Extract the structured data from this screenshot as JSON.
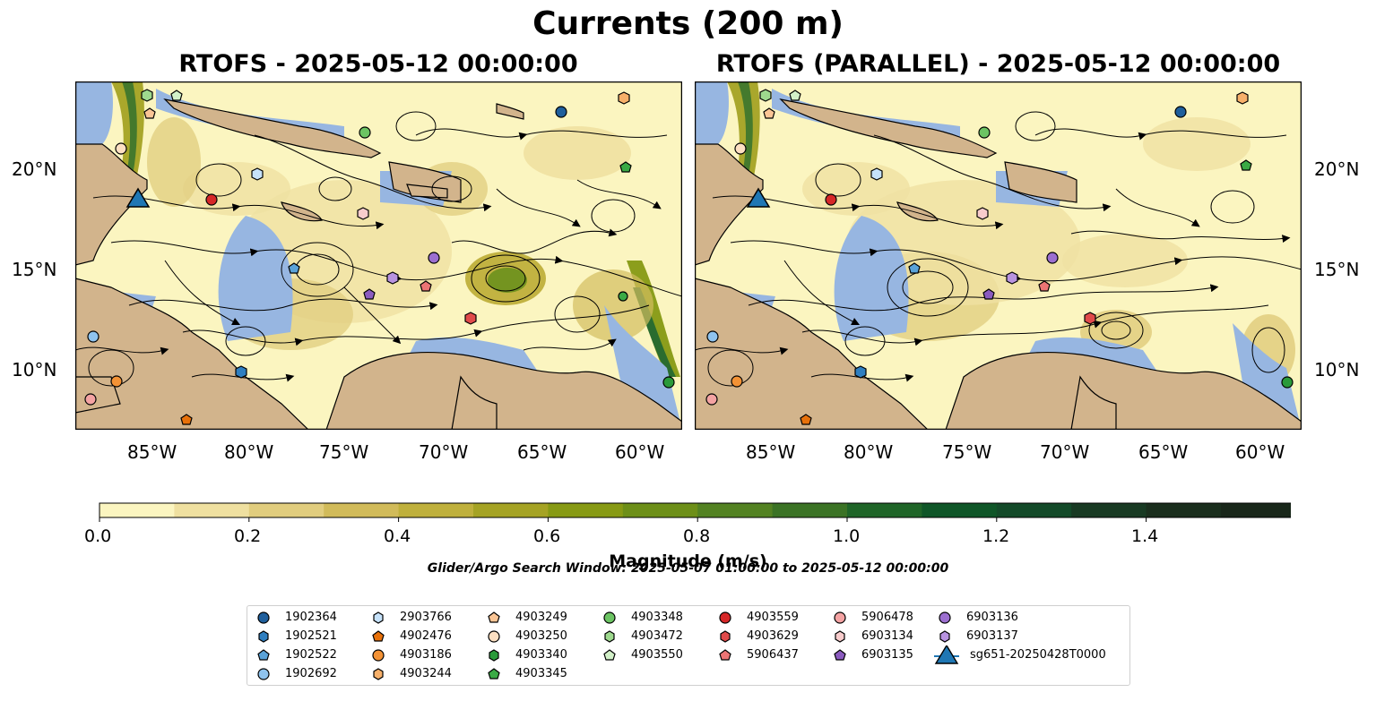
{
  "figure": {
    "suptitle": "Currents (200 m)",
    "left_title": "RTOFS - 2025-05-12 00:00:00",
    "right_title": "RTOFS (PARALLEL) - 2025-05-12 00:00:00",
    "lon_labels": [
      "85°W",
      "80°W",
      "75°W",
      "70°W",
      "65°W",
      "60°W"
    ],
    "lat_labels": [
      "20°N",
      "15°N",
      "10°N"
    ],
    "colorbar_label": "Magnitude (m/s)",
    "colorbar_ticks": [
      "0.0",
      "0.2",
      "0.4",
      "0.6",
      "0.8",
      "1.0",
      "1.2",
      "1.4"
    ],
    "colorbar_colors": [
      "#fbf5c0",
      "#efe0a0",
      "#e1cd7e",
      "#d1bb5a",
      "#bfb03c",
      "#a5a324",
      "#879a14",
      "#6d8f18",
      "#538222",
      "#3b7325",
      "#1f6528",
      "#0f5628",
      "#134a29",
      "#183a23",
      "#1a2e1d",
      "#19271a"
    ],
    "search_window": "Glider/Argo Search Window: 2025-05-07 01:00:00 to 2025-05-12 00:00:00",
    "colors": {
      "land": "#d2b48c",
      "shallow": "#97b6e1",
      "coast": "#000000"
    }
  },
  "legend": [
    {
      "label": "1902364",
      "marker": "circle",
      "color": "#1f5f9c"
    },
    {
      "label": "1902521",
      "marker": "hexagon",
      "color": "#2f7fc0"
    },
    {
      "label": "1902522",
      "marker": "pentagon",
      "color": "#5aa2d8"
    },
    {
      "label": "1902692",
      "marker": "circle",
      "color": "#8fc3ee"
    },
    {
      "label": "2903766",
      "marker": "hexagon",
      "color": "#c6e2fa"
    },
    {
      "label": "4902476",
      "marker": "pentagon",
      "color": "#e8710a"
    },
    {
      "label": "4903186",
      "marker": "circle",
      "color": "#f39235"
    },
    {
      "label": "4903244",
      "marker": "hexagon",
      "color": "#f7b06a"
    },
    {
      "label": "4903249",
      "marker": "pentagon",
      "color": "#fac595"
    },
    {
      "label": "4903250",
      "marker": "circle",
      "color": "#fde0c2"
    },
    {
      "label": "4903340",
      "marker": "hexagon",
      "color": "#2a9a3a"
    },
    {
      "label": "4903345",
      "marker": "pentagon",
      "color": "#3aaa45"
    },
    {
      "label": "4903348",
      "marker": "circle",
      "color": "#6cc463"
    },
    {
      "label": "4903472",
      "marker": "hexagon",
      "color": "#9ed98e"
    },
    {
      "label": "4903550",
      "marker": "pentagon",
      "color": "#d2f0c8"
    },
    {
      "label": "4903559",
      "marker": "circle",
      "color": "#d62728"
    },
    {
      "label": "4903629",
      "marker": "hexagon",
      "color": "#e04a4a"
    },
    {
      "label": "5906437",
      "marker": "pentagon",
      "color": "#ec7474"
    },
    {
      "label": "5906478",
      "marker": "circle",
      "color": "#f4a3a3"
    },
    {
      "label": "6903134",
      "marker": "hexagon",
      "color": "#f8cccc"
    },
    {
      "label": "6903135",
      "marker": "pentagon",
      "color": "#8b5bbf"
    },
    {
      "label": "6903136",
      "marker": "circle",
      "color": "#9c6fd0"
    },
    {
      "label": "6903137",
      "marker": "hexagon",
      "color": "#b893e0"
    },
    {
      "label": "sg651-20250428T0000",
      "marker": "triangle",
      "color": "#1f77b4"
    }
  ]
}
